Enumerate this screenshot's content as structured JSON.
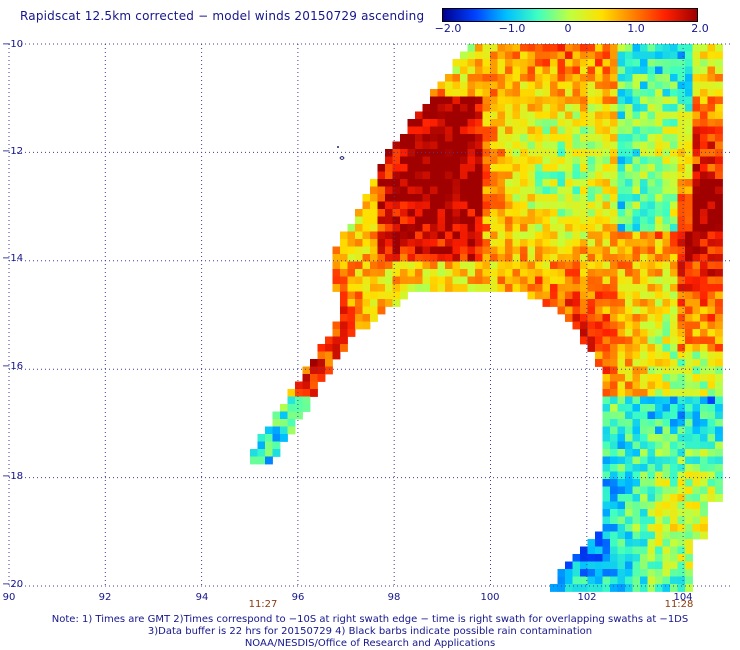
{
  "title": "Rapidscat 12.5km corrected − model winds 20150729 ascending",
  "colorbar": {
    "labels": [
      "−2.0",
      "−1.0",
      "0",
      "1.0",
      "2.0"
    ],
    "min": -2.0,
    "max": 2.0,
    "colors": [
      "#000090",
      "#0040ff",
      "#00c0ff",
      "#40ffc0",
      "#c0ff40",
      "#ffe000",
      "#ff8000",
      "#ff2000",
      "#a00000"
    ]
  },
  "map": {
    "lon_range": [
      90,
      104.5
    ],
    "lat_range": [
      -20,
      -10
    ],
    "lon_ticks": [
      "90",
      "92",
      "94",
      "96",
      "98",
      "100",
      "102",
      "104"
    ],
    "lat_ticks": [
      "−10",
      "−12",
      "−14",
      "−16",
      "−18",
      "−20"
    ],
    "grid": true,
    "time_labels": [
      {
        "text": "11:27",
        "lon": 95.2
      },
      {
        "text": "11:28",
        "lon": 103.8
      }
    ]
  },
  "footer": {
    "line1": "Note: 1) Times are GMT 2)Times correspond to −10S at right swath edge − time is right swath for overlapping swaths at −1DS",
    "line2": "3)Data buffer is 22 hrs for 20150729 4) Black barbs indicate possible rain contamination",
    "line3": "NOAA/NESDIS/Office of Research and Applications"
  }
}
